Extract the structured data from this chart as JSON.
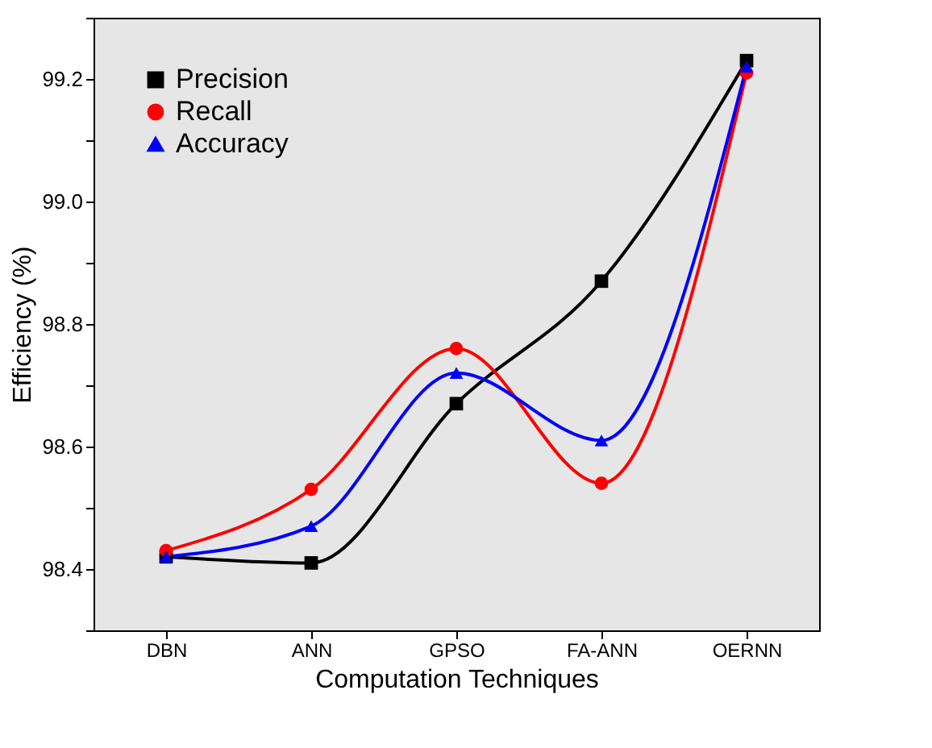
{
  "chart_data": {
    "type": "line",
    "xlabel": "Computation Techniques",
    "ylabel": "Efficiency (%)",
    "categories": [
      "DBN",
      "ANN",
      "GPSO",
      "FA-ANN",
      "OERNN"
    ],
    "series": [
      {
        "name": "Precision",
        "color": "#000000",
        "marker": "square",
        "values": [
          98.42,
          98.41,
          98.67,
          98.87,
          99.23
        ]
      },
      {
        "name": "Recall",
        "color": "#ff0000",
        "marker": "circle",
        "values": [
          98.43,
          98.53,
          98.76,
          98.54,
          99.21
        ]
      },
      {
        "name": "Accuracy",
        "color": "#0000ff",
        "marker": "triangle",
        "values": [
          98.42,
          98.47,
          98.72,
          98.61,
          99.22
        ]
      }
    ],
    "ylim": [
      98.3,
      99.3
    ],
    "yticks": [
      {
        "value": 98.3,
        "label": null
      },
      98.4,
      {
        "value": 98.5,
        "label": null
      },
      98.6,
      {
        "value": 98.7,
        "label": null
      },
      98.8,
      {
        "value": 98.9,
        "label": null
      },
      {
        "value": 99,
        "label": "99.0"
      },
      {
        "value": 99.1,
        "label": null
      },
      99.2,
      {
        "value": 99.3,
        "label": null
      }
    ],
    "legend": "top left",
    "grid": false,
    "line_style": "solid"
  }
}
